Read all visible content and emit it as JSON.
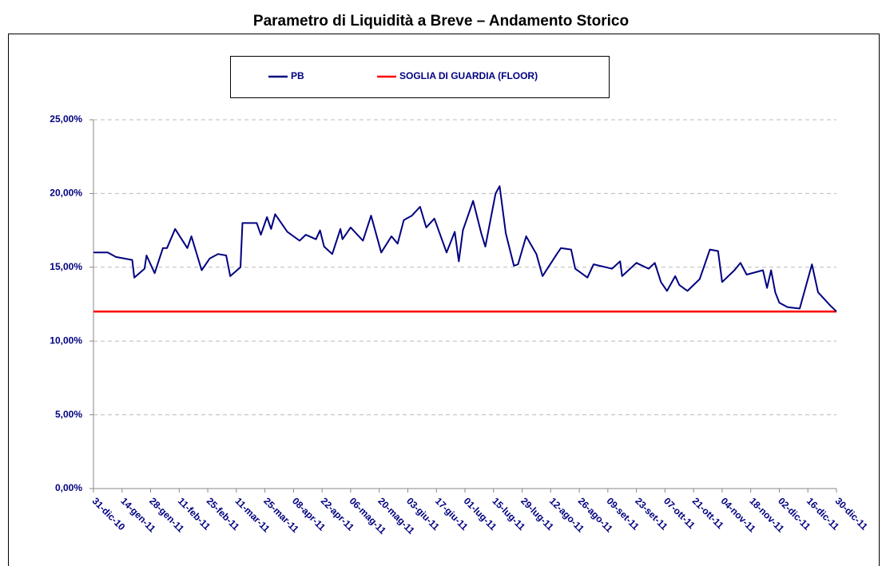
{
  "chart_data": {
    "type": "line",
    "title": "Parametro di Liquidità a Breve – Andamento Storico",
    "x": [
      "2010-12-31",
      "2011-01-07",
      "2011-01-11",
      "2011-01-19",
      "2011-01-20",
      "2011-01-25",
      "2011-01-26",
      "2011-01-30",
      "2011-02-03",
      "2011-02-05",
      "2011-02-09",
      "2011-02-15",
      "2011-02-17",
      "2011-02-22",
      "2011-02-26",
      "2011-03-02",
      "2011-03-06",
      "2011-03-08",
      "2011-03-13",
      "2011-03-14",
      "2011-03-21",
      "2011-03-23",
      "2011-03-26",
      "2011-03-28",
      "2011-03-30",
      "2011-04-05",
      "2011-04-11",
      "2011-04-14",
      "2011-04-19",
      "2011-04-21",
      "2011-04-23",
      "2011-04-27",
      "2011-05-01",
      "2011-05-02",
      "2011-05-06",
      "2011-05-12",
      "2011-05-16",
      "2011-05-21",
      "2011-05-26",
      "2011-05-29",
      "2011-06-01",
      "2011-06-05",
      "2011-06-09",
      "2011-06-12",
      "2011-06-16",
      "2011-06-22",
      "2011-06-26",
      "2011-06-28",
      "2011-06-30",
      "2011-07-05",
      "2011-07-09",
      "2011-07-11",
      "2011-07-16",
      "2011-07-18",
      "2011-07-21",
      "2011-07-25",
      "2011-07-27",
      "2011-07-31",
      "2011-08-05",
      "2011-08-08",
      "2011-08-15",
      "2011-08-17",
      "2011-08-22",
      "2011-08-24",
      "2011-08-30",
      "2011-09-02",
      "2011-09-11",
      "2011-09-15",
      "2011-09-16",
      "2011-09-23",
      "2011-09-29",
      "2011-10-02",
      "2011-10-05",
      "2011-10-08",
      "2011-10-12",
      "2011-10-14",
      "2011-10-18",
      "2011-10-24",
      "2011-10-29",
      "2011-11-02",
      "2011-11-04",
      "2011-11-10",
      "2011-11-13",
      "2011-11-16",
      "2011-11-24",
      "2011-11-26",
      "2011-11-28",
      "2011-11-30",
      "2011-12-02",
      "2011-12-06",
      "2011-12-12",
      "2011-12-18",
      "2011-12-21",
      "2011-12-27",
      "2011-12-30"
    ],
    "series": [
      {
        "name": "PB",
        "color": "#000080",
        "values": [
          16.0,
          16.0,
          15.7,
          15.5,
          14.3,
          14.9,
          15.8,
          14.6,
          16.3,
          16.3,
          17.6,
          16.3,
          17.1,
          14.8,
          15.6,
          15.9,
          15.8,
          14.4,
          15.0,
          18.0,
          18.0,
          17.2,
          18.4,
          17.6,
          18.6,
          17.4,
          16.8,
          17.2,
          16.9,
          17.5,
          16.4,
          15.9,
          17.6,
          16.9,
          17.7,
          16.8,
          18.5,
          16.0,
          17.1,
          16.6,
          18.2,
          18.5,
          19.1,
          17.7,
          18.3,
          16.0,
          17.4,
          15.4,
          17.5,
          19.5,
          17.3,
          16.4,
          20.0,
          20.5,
          17.3,
          15.1,
          15.2,
          17.1,
          15.9,
          14.4,
          15.9,
          16.3,
          16.2,
          14.9,
          14.3,
          15.2,
          14.9,
          15.4,
          14.4,
          15.3,
          14.9,
          15.3,
          14.0,
          13.4,
          14.4,
          13.8,
          13.4,
          14.2,
          16.2,
          16.1,
          14.0,
          14.8,
          15.3,
          14.5,
          14.8,
          13.6,
          14.8,
          13.3,
          12.6,
          12.3,
          12.2,
          15.2,
          13.3,
          12.4,
          12.0
        ]
      },
      {
        "name": "SOGLIA DI GUARDIA (FLOOR)",
        "color": "#ff0000",
        "values": [
          12,
          12,
          12,
          12,
          12,
          12,
          12,
          12,
          12,
          12,
          12,
          12,
          12,
          12,
          12,
          12,
          12,
          12,
          12,
          12,
          12,
          12,
          12,
          12,
          12,
          12,
          12,
          12,
          12,
          12,
          12,
          12,
          12,
          12,
          12,
          12,
          12,
          12,
          12,
          12,
          12,
          12,
          12,
          12,
          12,
          12,
          12,
          12,
          12,
          12,
          12,
          12,
          12,
          12,
          12,
          12,
          12,
          12,
          12,
          12,
          12,
          12,
          12,
          12,
          12,
          12,
          12,
          12,
          12,
          12,
          12,
          12,
          12,
          12,
          12,
          12,
          12,
          12,
          12,
          12,
          12,
          12,
          12,
          12,
          12,
          12,
          12,
          12,
          12,
          12,
          12,
          12,
          12,
          12,
          12
        ]
      }
    ],
    "xlim": [
      "2010-12-31",
      "2011-12-30"
    ],
    "xticks": [
      {
        "value": "2010-12-31",
        "label": "31-dic-10"
      },
      {
        "value": "2011-01-14",
        "label": "14-gen-11"
      },
      {
        "value": "2011-01-28",
        "label": "28-gen-11"
      },
      {
        "value": "2011-02-11",
        "label": "11-feb-11"
      },
      {
        "value": "2011-02-25",
        "label": "25-feb-11"
      },
      {
        "value": "2011-03-11",
        "label": "11-mar-11"
      },
      {
        "value": "2011-03-25",
        "label": "25-mar-11"
      },
      {
        "value": "2011-04-08",
        "label": "08-apr-11"
      },
      {
        "value": "2011-04-22",
        "label": "22-apr-11"
      },
      {
        "value": "2011-05-06",
        "label": "06-mag-11"
      },
      {
        "value": "2011-05-20",
        "label": "20-mag-11"
      },
      {
        "value": "2011-06-03",
        "label": "03-giu-11"
      },
      {
        "value": "2011-06-17",
        "label": "17-giu-11"
      },
      {
        "value": "2011-07-01",
        "label": "01-lug-11"
      },
      {
        "value": "2011-07-15",
        "label": "15-lug-11"
      },
      {
        "value": "2011-07-29",
        "label": "29-lug-11"
      },
      {
        "value": "2011-08-12",
        "label": "12-ago-11"
      },
      {
        "value": "2011-08-26",
        "label": "26-ago-11"
      },
      {
        "value": "2011-09-09",
        "label": "09-set-11"
      },
      {
        "value": "2011-09-23",
        "label": "23-set-11"
      },
      {
        "value": "2011-10-07",
        "label": "07-ott-11"
      },
      {
        "value": "2011-10-21",
        "label": "21-ott-11"
      },
      {
        "value": "2011-11-04",
        "label": "04-nov-11"
      },
      {
        "value": "2011-11-18",
        "label": "18-nov-11"
      },
      {
        "value": "2011-12-02",
        "label": "02-dic-11"
      },
      {
        "value": "2011-12-16",
        "label": "16-dic-11"
      },
      {
        "value": "2011-12-30",
        "label": "30-dic-11"
      }
    ],
    "ylim": [
      0,
      25
    ],
    "yticks": [
      {
        "value": 0,
        "label": "0,00%"
      },
      {
        "value": 5,
        "label": "5,00%"
      },
      {
        "value": 10,
        "label": "10,00%"
      },
      {
        "value": 15,
        "label": "15,00%"
      },
      {
        "value": 20,
        "label": "20,00%"
      },
      {
        "value": 25,
        "label": "25,00%"
      }
    ],
    "grid": true,
    "legend": "top"
  }
}
